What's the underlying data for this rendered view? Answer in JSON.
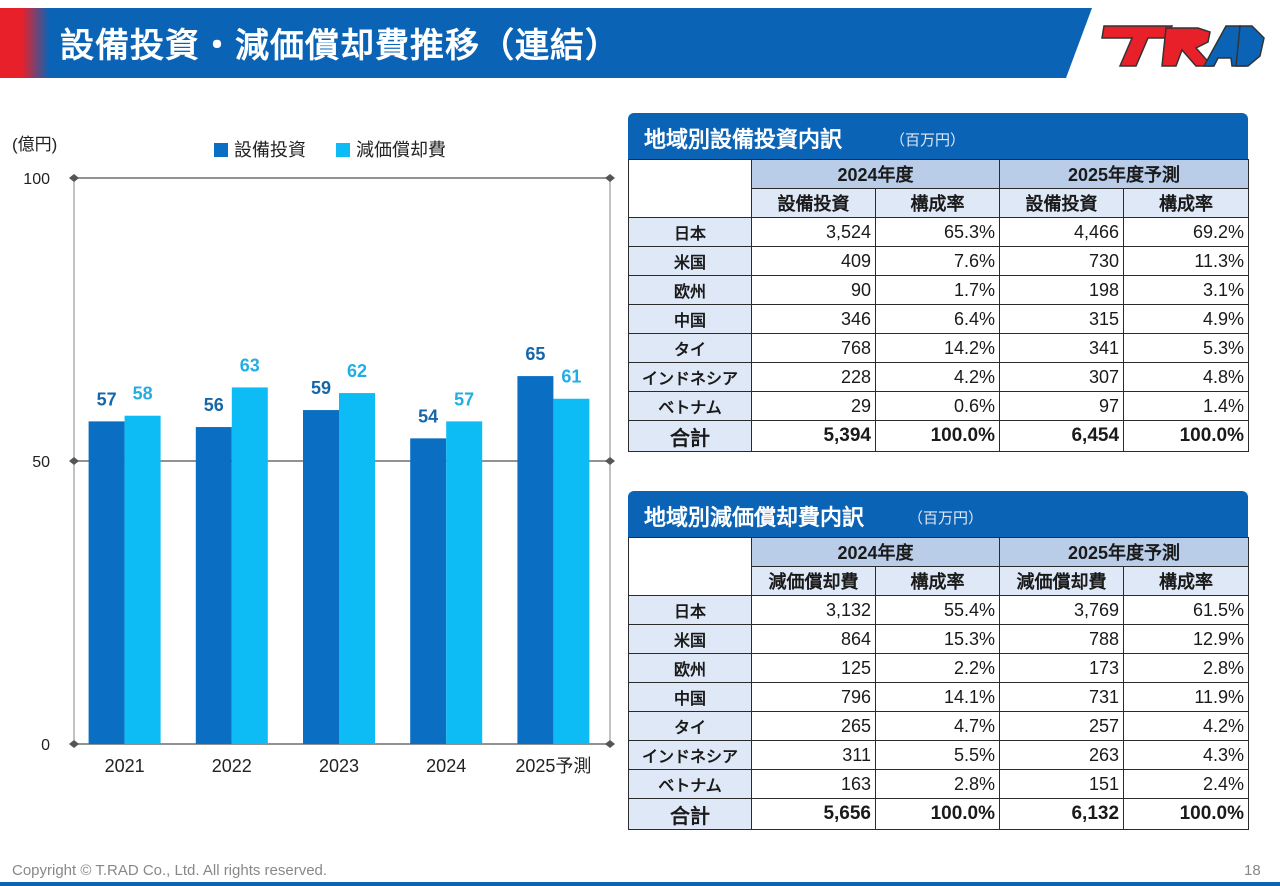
{
  "header": {
    "title": "設備投資・減価償却費推移（連結）",
    "logo_text": "T.RAD"
  },
  "colors": {
    "header": "#0b63b5",
    "capex": "#0a6fc2",
    "depreciation": "#0dbcf5",
    "accent_red": "#e8202a"
  },
  "chart_data": {
    "type": "bar",
    "categories": [
      "2021",
      "2022",
      "2023",
      "2024",
      "2025予測"
    ],
    "series": [
      {
        "name": "設備投資",
        "values": [
          57,
          56,
          59,
          54,
          65
        ],
        "color": "#0a6fc2"
      },
      {
        "name": "減価償却費",
        "values": [
          58,
          63,
          62,
          57,
          61
        ],
        "color": "#0dbcf5"
      }
    ],
    "ylabel": "(億円)",
    "ylim": [
      0,
      100
    ],
    "yticks": [
      0,
      50,
      100
    ],
    "legend": "top",
    "grid": true
  },
  "capex_table": {
    "title": "地域別設備投資内訳",
    "unit": "（百万円）",
    "year_headers": [
      "2024年度",
      "2025年度予測"
    ],
    "col_headers": [
      "設備投資",
      "構成率",
      "設備投資",
      "構成率"
    ],
    "rows": [
      {
        "region": "日本",
        "v1": "3,524",
        "r1": "65.3%",
        "v2": "4,466",
        "r2": "69.2%"
      },
      {
        "region": "米国",
        "v1": "409",
        "r1": "7.6%",
        "v2": "730",
        "r2": "11.3%"
      },
      {
        "region": "欧州",
        "v1": "90",
        "r1": "1.7%",
        "v2": "198",
        "r2": "3.1%"
      },
      {
        "region": "中国",
        "v1": "346",
        "r1": "6.4%",
        "v2": "315",
        "r2": "4.9%"
      },
      {
        "region": "タイ",
        "v1": "768",
        "r1": "14.2%",
        "v2": "341",
        "r2": "5.3%"
      },
      {
        "region": "インドネシア",
        "v1": "228",
        "r1": "4.2%",
        "v2": "307",
        "r2": "4.8%"
      },
      {
        "region": "ベトナム",
        "v1": "29",
        "r1": "0.6%",
        "v2": "97",
        "r2": "1.4%"
      }
    ],
    "total": {
      "region": "合計",
      "v1": "5,394",
      "r1": "100.0%",
      "v2": "6,454",
      "r2": "100.0%"
    }
  },
  "dep_table": {
    "title": "地域別減価償却費内訳",
    "unit": "（百万円）",
    "year_headers": [
      "2024年度",
      "2025年度予測"
    ],
    "col_headers": [
      "減価償却費",
      "構成率",
      "減価償却費",
      "構成率"
    ],
    "rows": [
      {
        "region": "日本",
        "v1": "3,132",
        "r1": "55.4%",
        "v2": "3,769",
        "r2": "61.5%"
      },
      {
        "region": "米国",
        "v1": "864",
        "r1": "15.3%",
        "v2": "788",
        "r2": "12.9%"
      },
      {
        "region": "欧州",
        "v1": "125",
        "r1": "2.2%",
        "v2": "173",
        "r2": "2.8%"
      },
      {
        "region": "中国",
        "v1": "796",
        "r1": "14.1%",
        "v2": "731",
        "r2": "11.9%"
      },
      {
        "region": "タイ",
        "v1": "265",
        "r1": "4.7%",
        "v2": "257",
        "r2": "4.2%"
      },
      {
        "region": "インドネシア",
        "v1": "311",
        "r1": "5.5%",
        "v2": "263",
        "r2": "4.3%"
      },
      {
        "region": "ベトナム",
        "v1": "163",
        "r1": "2.8%",
        "v2": "151",
        "r2": "2.4%"
      }
    ],
    "total": {
      "region": "合計",
      "v1": "5,656",
      "r1": "100.0%",
      "v2": "6,132",
      "r2": "100.0%"
    }
  },
  "footer": {
    "copyright": "Copyright © T.RAD Co., Ltd. All rights reserved.",
    "page": "18"
  }
}
